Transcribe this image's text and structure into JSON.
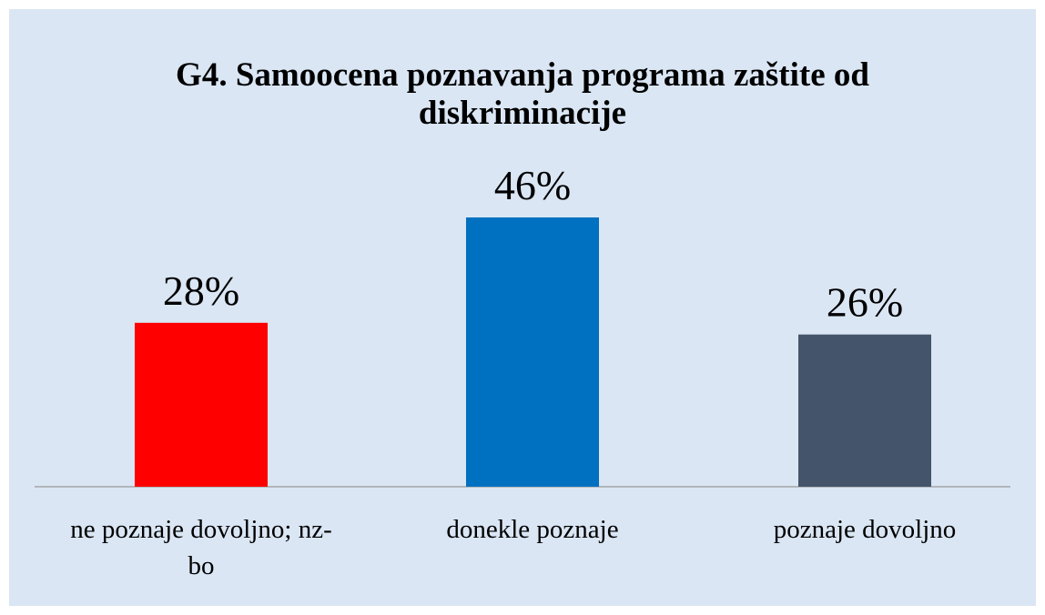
{
  "chart_data": {
    "type": "bar",
    "title": "G4. Samoocena poznavanja programa zaštite od diskriminacije",
    "categories": [
      "ne poznaje dovoljno; nz-bo",
      "donekle poznaje",
      "poznaje dovoljno"
    ],
    "values": [
      28,
      46,
      26
    ],
    "value_labels": [
      "28%",
      "46%",
      "26%"
    ],
    "colors": [
      "#ff0000",
      "#0070c0",
      "#44546a"
    ]
  }
}
